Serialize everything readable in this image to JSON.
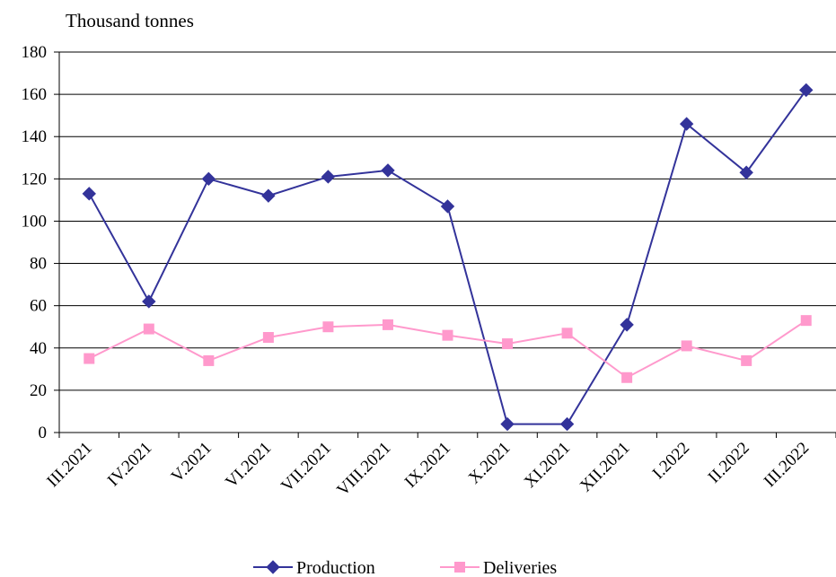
{
  "chart_data": {
    "type": "line",
    "ylabel": "Thousand tonnes",
    "categories": [
      "III.2021",
      "IV.2021",
      "V.2021",
      "VI.2021",
      "VII.2021",
      "VIII.2021",
      "IX.2021",
      "X.2021",
      "XI.2021",
      "XII.2021",
      "I.2022",
      "II.2022",
      "III.2022"
    ],
    "ylim": [
      0,
      180
    ],
    "yticks": [
      0,
      20,
      40,
      60,
      80,
      100,
      120,
      140,
      160,
      180
    ],
    "grid": true,
    "legend_position": "bottom",
    "series": [
      {
        "name": "Production",
        "color": "#33339a",
        "marker": "diamond",
        "values": [
          113,
          62,
          120,
          112,
          121,
          124,
          107,
          4,
          4,
          51,
          146,
          123,
          162
        ]
      },
      {
        "name": "Deliveries",
        "color": "#ff99cc",
        "marker": "square",
        "values": [
          35,
          49,
          34,
          45,
          50,
          51,
          46,
          42,
          47,
          26,
          41,
          34,
          53
        ]
      }
    ]
  }
}
